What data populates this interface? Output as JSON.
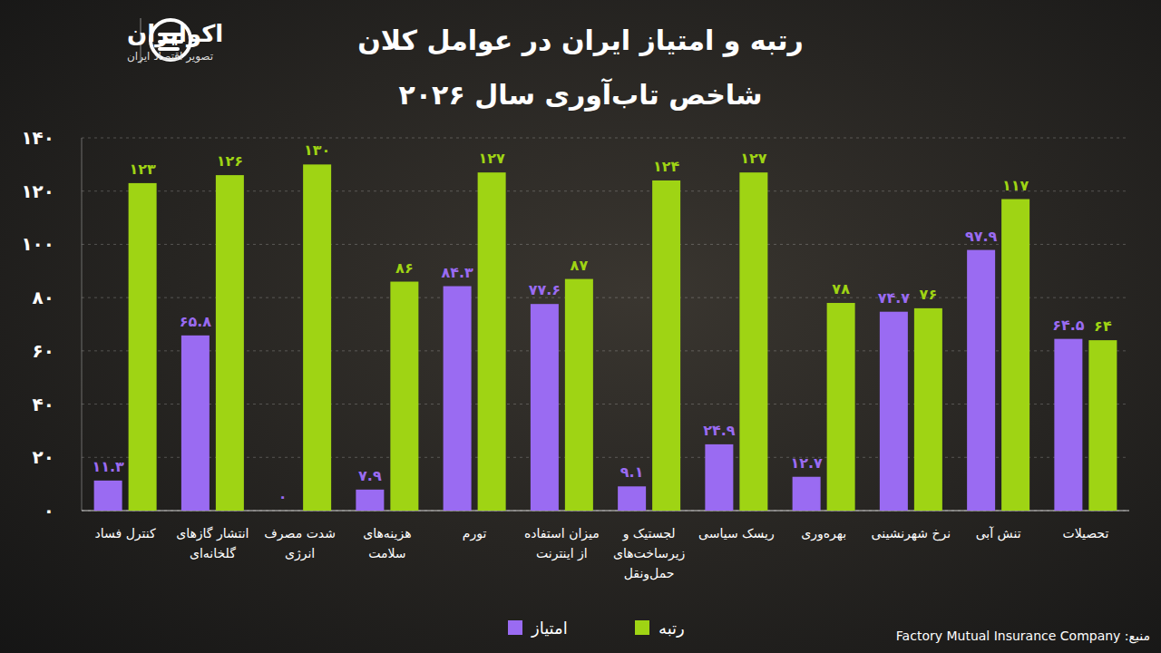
{
  "chart_data": {
    "type": "bar",
    "title": "رتبه و امتیاز ایران در عوامل کلان",
    "subtitle": "شاخص تاب‌آوری سال ۲۰۲۶",
    "source": "منبع: Factory Mutual Insurance Company",
    "categories": [
      "کنترل فساد",
      "انتشار گازهای گلخانه‌ای",
      "شدت مصرف انرژی",
      "هزینه‌های سلامت",
      "تورم",
      "میزان استفاده از اینترنت",
      "لجستیک و زیرساخت‌های حمل‌ونقل",
      "ریسک سیاسی",
      "بهره‌وری",
      "نرخ شهرنشینی",
      "تنش آبی",
      "تحصیلات"
    ],
    "series": [
      {
        "name": "امتیاز",
        "color": "#9a6bf2",
        "values": [
          11.3,
          65.8,
          0,
          7.9,
          84.3,
          77.6,
          9.1,
          24.9,
          12.7,
          74.7,
          97.9,
          64.5
        ],
        "value_labels": [
          "۱۱.۳",
          "۶۵.۸",
          "۰",
          "۷.۹",
          "۸۴.۳",
          "۷۷.۶",
          "۹.۱",
          "۲۴.۹",
          "۱۲.۷",
          "۷۴.۷",
          "۹۷.۹",
          "۶۴.۵"
        ]
      },
      {
        "name": "رتبه",
        "color": "#9fd414",
        "values": [
          123,
          126,
          130,
          86,
          127,
          87,
          124,
          127,
          78,
          76,
          117,
          64
        ],
        "value_labels": [
          "۱۲۳",
          "۱۲۶",
          "۱۳۰",
          "۸۶",
          "۱۲۷",
          "۸۷",
          "۱۲۴",
          "۱۲۷",
          "۷۸",
          "۷۶",
          "۱۱۷",
          "۶۴"
        ]
      }
    ],
    "ylim": [
      0,
      140
    ],
    "yticks": [
      {
        "value": 0,
        "label": "۰"
      },
      {
        "value": 20,
        "label": "۲۰"
      },
      {
        "value": 40,
        "label": "۴۰"
      },
      {
        "value": 60,
        "label": "۶۰"
      },
      {
        "value": 80,
        "label": "۸۰"
      },
      {
        "value": 100,
        "label": "۱۰۰"
      },
      {
        "value": 120,
        "label": "۱۲۰"
      },
      {
        "value": 140,
        "label": "۱۴۰"
      }
    ],
    "grid": true,
    "legend": "bottom",
    "data_labels": true
  },
  "brand": {
    "name": "اکوایران",
    "tagline": "تصویر اقتصاد ایران"
  }
}
